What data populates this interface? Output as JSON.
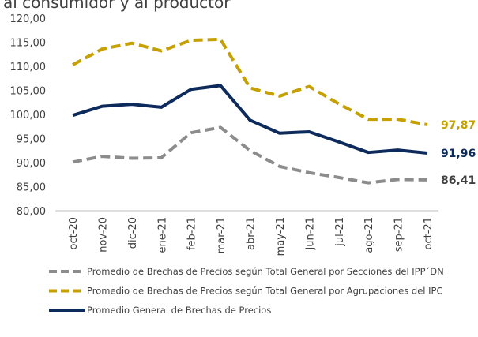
{
  "chart_data": {
    "type": "line",
    "title": "al consumidor y al productor",
    "categories": [
      "oct-20",
      "nov-20",
      "dic-20",
      "ene-21",
      "feb-21",
      "mar-21",
      "abr-21",
      "may-21",
      "jun-21",
      "jul-21",
      "ago-21",
      "sep-21",
      "oct-21"
    ],
    "series": [
      {
        "name": "Promedio de Brechas de Precios según Total General por Secciones del IPP´DN",
        "color": "#8c8c8c",
        "dashed": true,
        "values": [
          90.1,
          91.3,
          90.9,
          91.0,
          96.2,
          97.3,
          92.5,
          89.2,
          87.9,
          86.9,
          85.8,
          86.5,
          86.41
        ],
        "value_labels": [
          null,
          null,
          null,
          null,
          null,
          null,
          null,
          null,
          null,
          null,
          null,
          null,
          "86,41"
        ]
      },
      {
        "name": "Promedio de Brechas de Precios según Total General por Agrupaciones del IPC",
        "color": "#c5a000",
        "dashed": true,
        "values": [
          110.3,
          113.6,
          114.8,
          113.2,
          115.4,
          115.6,
          105.5,
          103.8,
          105.8,
          102.2,
          99.0,
          99.0,
          97.87
        ],
        "value_labels": [
          null,
          null,
          null,
          null,
          null,
          null,
          null,
          null,
          null,
          null,
          null,
          null,
          "97,87"
        ]
      },
      {
        "name": "Promedio General de Brechas de Precios",
        "color": "#0c2a5b",
        "dashed": false,
        "values": [
          99.8,
          101.7,
          102.1,
          101.5,
          105.2,
          106.0,
          98.8,
          96.1,
          96.4,
          94.3,
          92.1,
          92.6,
          91.96
        ],
        "value_labels": [
          null,
          null,
          null,
          null,
          null,
          null,
          null,
          null,
          null,
          null,
          null,
          null,
          "91,96"
        ]
      }
    ],
    "ylim": [
      80,
      120
    ],
    "yticks": [
      {
        "value": 80,
        "label": "80,00"
      },
      {
        "value": 85,
        "label": "85,00"
      },
      {
        "value": 90,
        "label": "90,00"
      },
      {
        "value": 95,
        "label": "95,00"
      },
      {
        "value": 100,
        "label": "100,00"
      },
      {
        "value": 105,
        "label": "105,00"
      },
      {
        "value": 110,
        "label": "110,00"
      },
      {
        "value": 115,
        "label": "115,00"
      },
      {
        "value": 120,
        "label": "120,00"
      }
    ],
    "grid": false,
    "legend": "bottom"
  }
}
